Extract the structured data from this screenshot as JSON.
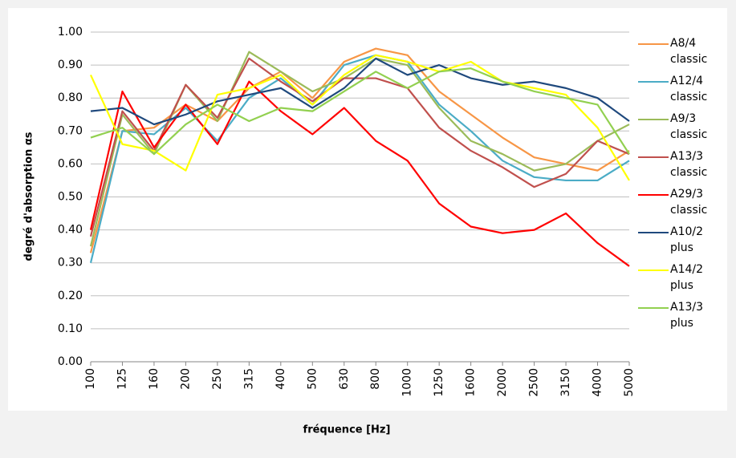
{
  "chart_data": {
    "type": "line",
    "y_label": "degré d'absorption αs",
    "x_label": "fréquence [Hz]",
    "categories": [
      "100",
      "125",
      "160",
      "200",
      "250",
      "315",
      "400",
      "500",
      "630",
      "800",
      "1000",
      "1250",
      "1600",
      "2000",
      "2500",
      "3150",
      "4000",
      "5000"
    ],
    "ylim": [
      0,
      1
    ],
    "yticks": [
      {
        "value": 0,
        "label": "0.00"
      },
      {
        "value": 0.1,
        "label": "0.10"
      },
      {
        "value": 0.2,
        "label": "0.20"
      },
      {
        "value": 0.3,
        "label": "0.30"
      },
      {
        "value": 0.4,
        "label": "0.40"
      },
      {
        "value": 0.5,
        "label": "0.50"
      },
      {
        "value": 0.6,
        "label": "0.60"
      },
      {
        "value": 0.7,
        "label": "0.70"
      },
      {
        "value": 0.8,
        "label": "0.80"
      },
      {
        "value": 0.9,
        "label": "0.90"
      },
      {
        "value": 1,
        "label": "1.00"
      }
    ],
    "grid": true,
    "series": [
      {
        "name": "A8/4 classic",
        "color": "#f79646",
        "values": [
          0.33,
          0.7,
          0.71,
          0.78,
          0.73,
          0.83,
          0.88,
          0.8,
          0.91,
          0.95,
          0.93,
          0.82,
          0.75,
          0.68,
          0.62,
          0.6,
          0.58,
          0.64
        ]
      },
      {
        "name": "A12/4 classic",
        "color": "#4bacc6",
        "values": [
          0.3,
          0.7,
          0.69,
          0.77,
          0.67,
          0.8,
          0.86,
          0.78,
          0.9,
          0.93,
          0.91,
          0.78,
          0.7,
          0.61,
          0.56,
          0.55,
          0.55,
          0.61
        ]
      },
      {
        "name": "A9/3 classic",
        "color": "#9bbb59",
        "values": [
          0.35,
          0.75,
          0.63,
          0.84,
          0.73,
          0.94,
          0.88,
          0.82,
          0.86,
          0.92,
          0.9,
          0.77,
          0.67,
          0.63,
          0.58,
          0.6,
          0.67,
          0.72
        ]
      },
      {
        "name": "A13/3 classic",
        "color": "#c0504d",
        "values": [
          0.38,
          0.76,
          0.64,
          0.84,
          0.74,
          0.92,
          0.85,
          0.79,
          0.86,
          0.86,
          0.83,
          0.71,
          0.64,
          0.59,
          0.53,
          0.57,
          0.67,
          0.63
        ]
      },
      {
        "name": "A29/3 classic",
        "color": "#ff0000",
        "values": [
          0.4,
          0.82,
          0.65,
          0.78,
          0.66,
          0.85,
          0.76,
          0.69,
          0.77,
          0.67,
          0.61,
          0.48,
          0.41,
          0.39,
          0.4,
          0.45,
          0.36,
          0.29
        ]
      },
      {
        "name": "A10/2 plus",
        "color": "#1f497d",
        "values": [
          0.76,
          0.77,
          0.72,
          0.75,
          0.79,
          0.81,
          0.83,
          0.77,
          0.83,
          0.92,
          0.87,
          0.9,
          0.86,
          0.84,
          0.85,
          0.83,
          0.8,
          0.73
        ]
      },
      {
        "name": "A14/2 plus",
        "color": "#ffff00",
        "values": [
          0.87,
          0.66,
          0.64,
          0.58,
          0.81,
          0.83,
          0.87,
          0.78,
          0.87,
          0.93,
          0.91,
          0.88,
          0.91,
          0.85,
          0.83,
          0.81,
          0.71,
          0.55
        ]
      },
      {
        "name": "A13/3 plus",
        "color": "#92d050",
        "values": [
          0.68,
          0.71,
          0.63,
          0.72,
          0.78,
          0.73,
          0.77,
          0.76,
          0.82,
          0.88,
          0.83,
          0.88,
          0.89,
          0.85,
          0.82,
          0.8,
          0.78,
          0.63
        ]
      }
    ]
  }
}
